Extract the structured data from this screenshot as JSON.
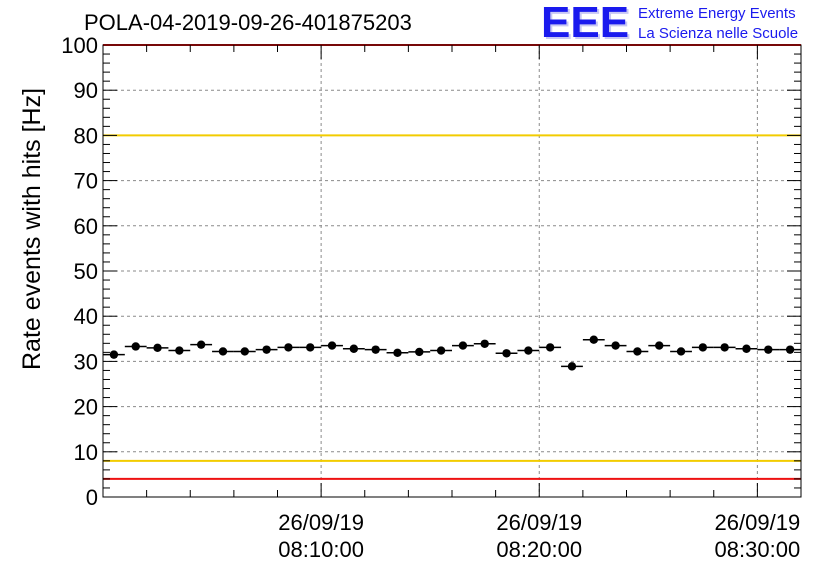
{
  "header": {
    "title": "POLA-04-2019-09-26-401875203",
    "logo_letters": "EEE",
    "logo_line1": "Extreme Energy Events",
    "logo_line2": "La Scienza nelle Scuole"
  },
  "colors": {
    "marker": "#000000",
    "threshold_red": "#ee1111",
    "threshold_yellow": "#f2cc00",
    "grid": "#888888",
    "logo_blue": "#1a1aee"
  },
  "chart_data": {
    "type": "scatter",
    "title": "POLA-04-2019-09-26-401875203",
    "xlabel": "",
    "ylabel": "Rate events with hits [Hz]",
    "x_start": "08:00:00",
    "x_end": "08:32:00",
    "ylim": [
      0,
      100
    ],
    "y_ticks": [
      0,
      10,
      20,
      30,
      40,
      50,
      60,
      70,
      80,
      90,
      100
    ],
    "x_ticks": [
      {
        "x": "08:10:00",
        "date": "26/09/19",
        "time": "08:10:00"
      },
      {
        "x": "08:20:00",
        "date": "26/09/19",
        "time": "08:20:00"
      },
      {
        "x": "08:30:00",
        "date": "26/09/19",
        "time": "08:30:00"
      }
    ],
    "grid": true,
    "bin_width_seconds": 60,
    "points": [
      {
        "x": "08:00:30",
        "y": 31.5
      },
      {
        "x": "08:01:30",
        "y": 33.3
      },
      {
        "x": "08:02:30",
        "y": 33.0
      },
      {
        "x": "08:03:30",
        "y": 32.4
      },
      {
        "x": "08:04:30",
        "y": 33.7
      },
      {
        "x": "08:05:30",
        "y": 32.2
      },
      {
        "x": "08:06:30",
        "y": 32.2
      },
      {
        "x": "08:07:30",
        "y": 32.6
      },
      {
        "x": "08:08:30",
        "y": 33.1
      },
      {
        "x": "08:09:30",
        "y": 33.1
      },
      {
        "x": "08:10:30",
        "y": 33.5
      },
      {
        "x": "08:11:30",
        "y": 32.8
      },
      {
        "x": "08:12:30",
        "y": 32.6
      },
      {
        "x": "08:13:30",
        "y": 31.9
      },
      {
        "x": "08:14:30",
        "y": 32.1
      },
      {
        "x": "08:15:30",
        "y": 32.4
      },
      {
        "x": "08:16:30",
        "y": 33.5
      },
      {
        "x": "08:17:30",
        "y": 33.9
      },
      {
        "x": "08:18:30",
        "y": 31.8
      },
      {
        "x": "08:19:30",
        "y": 32.4
      },
      {
        "x": "08:20:30",
        "y": 33.1
      },
      {
        "x": "08:21:30",
        "y": 28.9
      },
      {
        "x": "08:22:30",
        "y": 34.8
      },
      {
        "x": "08:23:30",
        "y": 33.5
      },
      {
        "x": "08:24:30",
        "y": 32.2
      },
      {
        "x": "08:25:30",
        "y": 33.5
      },
      {
        "x": "08:26:30",
        "y": 32.2
      },
      {
        "x": "08:27:30",
        "y": 33.1
      },
      {
        "x": "08:28:30",
        "y": 33.1
      },
      {
        "x": "08:29:30",
        "y": 32.8
      },
      {
        "x": "08:30:30",
        "y": 32.6
      },
      {
        "x": "08:31:30",
        "y": 32.6
      }
    ],
    "threshold_lines": [
      {
        "y": 100,
        "color": "#ee1111"
      },
      {
        "y": 80,
        "color": "#f2cc00"
      },
      {
        "y": 8,
        "color": "#f2cc00"
      },
      {
        "y": 4,
        "color": "#ee1111"
      }
    ]
  }
}
